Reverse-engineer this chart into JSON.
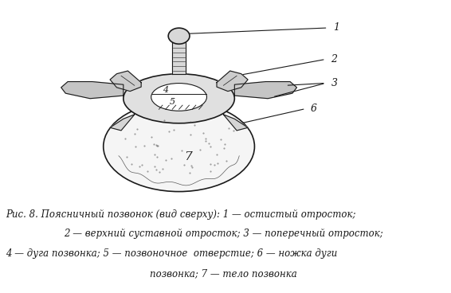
{
  "figure_width": 5.66,
  "figure_height": 3.68,
  "dpi": 100,
  "bg_color": "#ffffff",
  "caption_line1": "Рис. 8. Поясничный позвонок (вид сверху): 1 — остистый отросток;",
  "caption_line2": "2 — верхний суставной отросток; 3 — поперечный отросток;",
  "caption_line3": "4 — дуга позвонка; 5 — позвоночное  отверстие; 6 — ножка дуги",
  "caption_line4": "позвонка; 7 — тело позвонка",
  "label_1": "1",
  "label_2": "2",
  "label_3": "3",
  "label_4": "4",
  "label_5": "5",
  "label_6": "6",
  "label_7": "7",
  "draw_color": "#1a1a1a",
  "caption_fontsize": 8.5,
  "label_fontsize": 9
}
